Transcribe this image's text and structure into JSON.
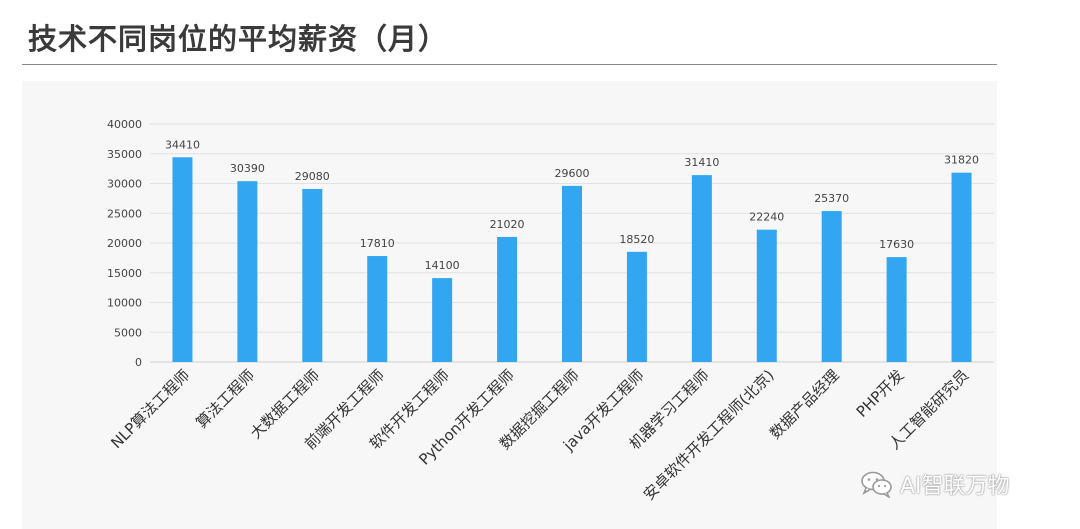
{
  "title": "技术不同岗位的平均薪资（月）",
  "watermark": {
    "text": "AI智联万物",
    "icon": "wechat-icon"
  },
  "colors": {
    "bar": "#33A6F2",
    "grid": "#e2e2e2",
    "text": "#444444"
  },
  "chart_data": {
    "type": "bar",
    "title": "",
    "xlabel": "",
    "ylabel": "",
    "ylim": [
      0,
      40000
    ],
    "yticks": [
      0,
      5000,
      10000,
      15000,
      20000,
      25000,
      30000,
      35000,
      40000
    ],
    "grid": true,
    "legend": "none",
    "categories": [
      "NLP算法工程师",
      "算法工程师",
      "大数据工程师",
      "前端开发工程师",
      "软件开发工程师",
      "Python开发工程师",
      "数据挖掘工程师",
      "java开发工程师",
      "机器学习工程师",
      "安卓软件开发工程师(北京)",
      "数据产品经理",
      "PHP开发",
      "人工智能研究员"
    ],
    "values": [
      34410,
      30390,
      29080,
      17810,
      14100,
      21020,
      29600,
      18520,
      31410,
      22240,
      25370,
      17630,
      31820
    ]
  }
}
